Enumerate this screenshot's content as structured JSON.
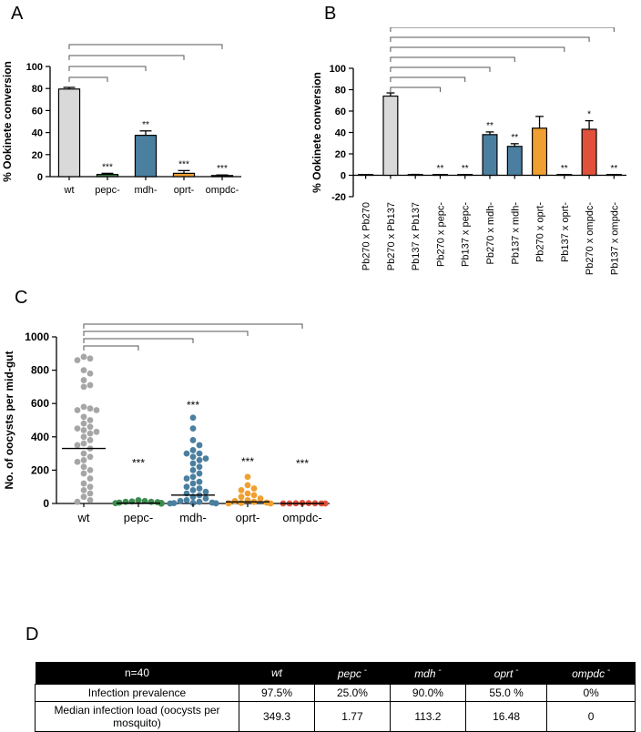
{
  "panels": {
    "a": "A",
    "b": "B",
    "c": "C",
    "d": "D"
  },
  "chart_data": [
    {
      "type": "bar",
      "panel": "A",
      "ylabel": "% Ookinete conversion",
      "ylim": [
        0,
        100
      ],
      "yticks": [
        0,
        20,
        40,
        60,
        80,
        100
      ],
      "categories": [
        "wt",
        "pepc-",
        "mdh-",
        "oprt-",
        "ompdc-"
      ],
      "values": [
        79.5,
        2,
        37.5,
        3,
        1
      ],
      "errors": [
        1.5,
        1,
        4,
        2.5,
        0.5
      ],
      "colors": [
        "#d9d9d9",
        "#3d8c4f",
        "#4a7fa0",
        "#f0a030",
        "#e0503a"
      ],
      "significance": [
        "",
        "***",
        "**",
        "***",
        "***"
      ],
      "comparison_brackets": [
        {
          "from": "wt",
          "to": "pepc-"
        },
        {
          "from": "wt",
          "to": "mdh-"
        },
        {
          "from": "wt",
          "to": "oprt-"
        },
        {
          "from": "wt",
          "to": "ompdc-"
        }
      ]
    },
    {
      "type": "bar",
      "panel": "B",
      "ylabel": "% Ookinete conversion",
      "ylim": [
        -20,
        100
      ],
      "yticks": [
        -20,
        0,
        20,
        40,
        60,
        80,
        100
      ],
      "categories": [
        "Pb270 x Pb270",
        "Pb270 x Pb137",
        "Pb137 x Pb137",
        "Pb270 x pepc-",
        "Pb137 x pepc-",
        "Pb270 x mdh-",
        "Pb137 x mdh-",
        "Pb270 x oprt-",
        "Pb137 x oprt-",
        "Pb270 x ompdc-",
        "Pb137 x ompdc-"
      ],
      "values": [
        0,
        74,
        0.5,
        0.3,
        0.3,
        38,
        27,
        44,
        0.3,
        43,
        0.3
      ],
      "errors": [
        0.3,
        3,
        0.3,
        0.3,
        0.3,
        2.5,
        2.5,
        11,
        0.3,
        8,
        0.3
      ],
      "colors": [
        "#d9d9d9",
        "#d9d9d9",
        "#d9d9d9",
        "#3d8c4f",
        "#3d8c4f",
        "#4a7fa0",
        "#4a7fa0",
        "#f0a030",
        "#f0a030",
        "#e0503a",
        "#e0503a"
      ],
      "significance": [
        "",
        "",
        "",
        "**",
        "**",
        "**",
        "**",
        "",
        "**",
        "*",
        "**"
      ],
      "comparison_brackets": [
        {
          "from": "Pb270 x Pb137",
          "to": "Pb270 x pepc-"
        },
        {
          "from": "Pb270 x Pb137",
          "to": "Pb137 x pepc-"
        },
        {
          "from": "Pb270 x Pb137",
          "to": "Pb270 x mdh-"
        },
        {
          "from": "Pb270 x Pb137",
          "to": "Pb137 x mdh-"
        },
        {
          "from": "Pb270 x Pb137",
          "to": "Pb137 x oprt-"
        },
        {
          "from": "Pb270 x Pb137",
          "to": "Pb270 x ompdc-"
        },
        {
          "from": "Pb270 x Pb137",
          "to": "Pb137 x ompdc-"
        }
      ]
    },
    {
      "type": "scatter",
      "panel": "C",
      "ylabel": "No. of oocysts per mid-gut",
      "ylim": [
        0,
        1000
      ],
      "yticks": [
        0,
        200,
        400,
        600,
        800,
        1000
      ],
      "categories": [
        "wt",
        "pepc-",
        "mdh-",
        "oprt-",
        "ompdc-"
      ],
      "colors": [
        "#a6a6a6",
        "#3d8c4f",
        "#4a7fa0",
        "#f0a030",
        "#e0503a"
      ],
      "medians": [
        330,
        2,
        50,
        10,
        0
      ],
      "significance": [
        "",
        "***",
        "***",
        "***",
        "***"
      ],
      "points": [
        [
          880,
          870,
          860,
          800,
          780,
          740,
          710,
          700,
          580,
          570,
          560,
          560,
          520,
          500,
          480,
          460,
          450,
          440,
          430,
          420,
          400,
          380,
          360,
          350,
          330,
          300,
          280,
          260,
          250,
          220,
          200,
          180,
          150,
          120,
          100,
          80,
          60,
          40,
          20,
          10
        ],
        [
          20,
          15,
          12,
          10,
          10,
          8,
          5,
          3,
          2,
          2,
          1,
          1,
          0,
          0,
          0,
          0,
          0,
          0,
          0,
          0
        ],
        [
          515,
          450,
          380,
          350,
          320,
          300,
          300,
          280,
          270,
          260,
          240,
          220,
          200,
          180,
          160,
          150,
          130,
          120,
          100,
          90,
          80,
          70,
          60,
          50,
          40,
          30,
          20,
          15,
          10,
          5,
          3,
          2,
          1,
          0
        ],
        [
          160,
          110,
          90,
          80,
          60,
          50,
          40,
          30,
          20,
          15,
          10,
          5,
          3,
          1,
          0
        ],
        [
          3,
          2,
          1,
          1,
          0,
          0,
          0,
          0
        ]
      ],
      "comparison_brackets": [
        {
          "from": "wt",
          "to": "pepc-"
        },
        {
          "from": "wt",
          "to": "mdh-"
        },
        {
          "from": "wt",
          "to": "oprt-"
        },
        {
          "from": "wt",
          "to": "ompdc-"
        }
      ]
    }
  ],
  "table": {
    "headers": [
      {
        "text": "n=40",
        "italic": false,
        "sup": ""
      },
      {
        "text": "wt",
        "italic": true,
        "sup": ""
      },
      {
        "text": "pepc",
        "italic": true,
        "sup": "-"
      },
      {
        "text": "mdh",
        "italic": true,
        "sup": "-"
      },
      {
        "text": "oprt",
        "italic": true,
        "sup": "-"
      },
      {
        "text": "ompdc",
        "italic": true,
        "sup": "-"
      }
    ],
    "rows": [
      {
        "label": "Infection prevalence",
        "values": [
          "97.5%",
          "25.0%",
          "90.0%",
          "55.0 %",
          "0%"
        ]
      },
      {
        "label": "Median infection load (oocysts per mosquito)",
        "values": [
          "349.3",
          "1.77",
          "113.2",
          "16.48",
          "0"
        ]
      }
    ]
  }
}
